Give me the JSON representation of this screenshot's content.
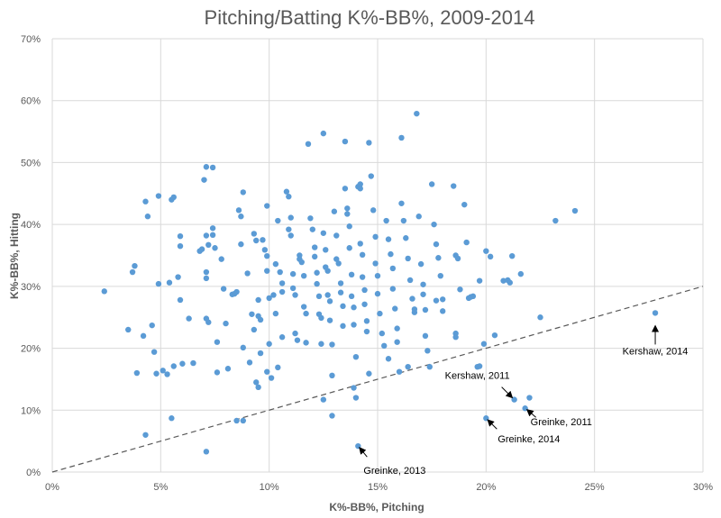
{
  "chart_data": {
    "type": "scatter",
    "title": "Pitching/Batting K%-BB%, 2009-2014",
    "xlabel": "K%-BB%, Pitching",
    "ylabel": "K%-BB%, Hitting",
    "xlim": [
      0,
      30
    ],
    "ylim": [
      0,
      70
    ],
    "xticks": [
      0,
      5,
      10,
      15,
      20,
      25,
      30
    ],
    "yticks": [
      0,
      10,
      20,
      30,
      40,
      50,
      60,
      70
    ],
    "xtick_labels": [
      "0%",
      "5%",
      "10%",
      "15%",
      "20%",
      "25%",
      "30%"
    ],
    "ytick_labels": [
      "0%",
      "10%",
      "20%",
      "30%",
      "40%",
      "50%",
      "60%",
      "70%"
    ],
    "grid": true,
    "point_color": "#5B9BD5",
    "reference_line": {
      "style": "dashed",
      "color": "#595959",
      "from": [
        0,
        0
      ],
      "to": [
        30,
        30
      ]
    },
    "annotations": [
      {
        "label": "Kershaw, 2014",
        "x": 27.8,
        "y": 25.7
      },
      {
        "label": "Kershaw, 2011",
        "x": 21.3,
        "y": 11.7
      },
      {
        "label": "Greinke, 2011",
        "x": 21.8,
        "y": 10.3
      },
      {
        "label": "Greinke, 2014",
        "x": 20.0,
        "y": 8.7
      },
      {
        "label": "Greinke, 2013",
        "x": 14.1,
        "y": 4.2
      }
    ],
    "points": [
      [
        2.4,
        29.2
      ],
      [
        3.5,
        23.0
      ],
      [
        3.7,
        32.3
      ],
      [
        3.8,
        33.3
      ],
      [
        3.9,
        16.0
      ],
      [
        4.2,
        22.0
      ],
      [
        4.3,
        43.7
      ],
      [
        4.4,
        41.3
      ],
      [
        4.3,
        6.0
      ],
      [
        4.6,
        23.7
      ],
      [
        4.7,
        19.4
      ],
      [
        4.8,
        15.9
      ],
      [
        4.9,
        44.6
      ],
      [
        4.9,
        30.4
      ],
      [
        5.1,
        16.4
      ],
      [
        5.3,
        15.8
      ],
      [
        5.4,
        30.6
      ],
      [
        5.5,
        44.0
      ],
      [
        5.6,
        44.4
      ],
      [
        5.6,
        17.1
      ],
      [
        5.5,
        8.7
      ],
      [
        5.8,
        31.5
      ],
      [
        5.9,
        38.1
      ],
      [
        5.9,
        36.5
      ],
      [
        5.9,
        27.8
      ],
      [
        6.0,
        17.5
      ],
      [
        6.3,
        24.8
      ],
      [
        6.5,
        17.6
      ],
      [
        6.8,
        35.7
      ],
      [
        6.9,
        36.0
      ],
      [
        7.0,
        47.2
      ],
      [
        7.1,
        49.3
      ],
      [
        7.1,
        38.2
      ],
      [
        7.1,
        32.3
      ],
      [
        7.1,
        31.3
      ],
      [
        7.2,
        36.7
      ],
      [
        7.1,
        24.8
      ],
      [
        7.2,
        24.2
      ],
      [
        7.1,
        3.3
      ],
      [
        7.4,
        49.2
      ],
      [
        7.4,
        39.4
      ],
      [
        7.4,
        38.3
      ],
      [
        7.5,
        36.2
      ],
      [
        7.6,
        21.0
      ],
      [
        7.6,
        16.1
      ],
      [
        7.8,
        34.4
      ],
      [
        7.9,
        29.6
      ],
      [
        8.0,
        24.0
      ],
      [
        8.1,
        16.7
      ],
      [
        8.3,
        28.7
      ],
      [
        8.4,
        28.8
      ],
      [
        8.5,
        29.1
      ],
      [
        8.6,
        42.3
      ],
      [
        8.7,
        41.3
      ],
      [
        8.7,
        36.8
      ],
      [
        8.8,
        45.2
      ],
      [
        8.8,
        20.1
      ],
      [
        8.8,
        8.3
      ],
      [
        9.0,
        32.1
      ],
      [
        9.1,
        17.7
      ],
      [
        9.2,
        25.5
      ],
      [
        9.3,
        23.0
      ],
      [
        9.3,
        38.5
      ],
      [
        9.4,
        37.4
      ],
      [
        9.5,
        13.7
      ],
      [
        9.4,
        14.5
      ],
      [
        9.5,
        27.8
      ],
      [
        9.5,
        25.2
      ],
      [
        9.6,
        24.6
      ],
      [
        9.6,
        19.2
      ],
      [
        9.7,
        37.5
      ],
      [
        9.8,
        35.9
      ],
      [
        9.9,
        34.9
      ],
      [
        9.9,
        43.0
      ],
      [
        9.9,
        32.5
      ],
      [
        10.0,
        28.1
      ],
      [
        10.0,
        20.7
      ],
      [
        10.1,
        15.2
      ],
      [
        10.2,
        28.6
      ],
      [
        10.3,
        25.6
      ],
      [
        10.3,
        33.6
      ],
      [
        10.4,
        40.6
      ],
      [
        10.5,
        32.3
      ],
      [
        10.6,
        30.5
      ],
      [
        10.6,
        21.8
      ],
      [
        10.6,
        29.1
      ],
      [
        10.8,
        45.3
      ],
      [
        10.9,
        44.5
      ],
      [
        10.9,
        39.2
      ],
      [
        11.0,
        41.1
      ],
      [
        11.0,
        38.2
      ],
      [
        11.1,
        32.0
      ],
      [
        11.1,
        29.7
      ],
      [
        11.2,
        28.6
      ],
      [
        11.2,
        22.4
      ],
      [
        11.3,
        21.3
      ],
      [
        11.4,
        35.0
      ],
      [
        11.4,
        34.4
      ],
      [
        11.5,
        33.9
      ],
      [
        11.6,
        31.7
      ],
      [
        11.6,
        26.7
      ],
      [
        11.7,
        25.6
      ],
      [
        11.7,
        20.9
      ],
      [
        11.8,
        53.0
      ],
      [
        11.9,
        41.0
      ],
      [
        12.0,
        39.2
      ],
      [
        12.1,
        36.3
      ],
      [
        12.1,
        34.8
      ],
      [
        12.2,
        32.2
      ],
      [
        12.2,
        30.4
      ],
      [
        12.3,
        28.4
      ],
      [
        12.3,
        25.5
      ],
      [
        12.4,
        24.9
      ],
      [
        12.4,
        20.7
      ],
      [
        12.5,
        54.7
      ],
      [
        12.5,
        38.6
      ],
      [
        12.6,
        35.9
      ],
      [
        12.6,
        33.1
      ],
      [
        12.7,
        32.5
      ],
      [
        12.7,
        28.6
      ],
      [
        12.8,
        27.6
      ],
      [
        12.8,
        24.5
      ],
      [
        12.9,
        20.6
      ],
      [
        12.9,
        15.6
      ],
      [
        13.0,
        42.1
      ],
      [
        13.1,
        38.2
      ],
      [
        13.1,
        34.4
      ],
      [
        13.2,
        33.7
      ],
      [
        13.3,
        30.5
      ],
      [
        13.3,
        29.0
      ],
      [
        13.4,
        26.8
      ],
      [
        13.4,
        23.6
      ],
      [
        13.5,
        53.4
      ],
      [
        13.5,
        45.8
      ],
      [
        13.6,
        42.6
      ],
      [
        13.6,
        41.7
      ],
      [
        13.7,
        39.7
      ],
      [
        13.7,
        36.2
      ],
      [
        13.8,
        31.9
      ],
      [
        13.8,
        28.4
      ],
      [
        13.9,
        26.6
      ],
      [
        13.9,
        23.8
      ],
      [
        14.0,
        18.6
      ],
      [
        14.1,
        46.1
      ],
      [
        14.2,
        46.5
      ],
      [
        14.2,
        45.8
      ],
      [
        14.2,
        36.9
      ],
      [
        14.3,
        35.1
      ],
      [
        14.3,
        31.5
      ],
      [
        14.4,
        29.4
      ],
      [
        14.4,
        27.1
      ],
      [
        14.5,
        24.4
      ],
      [
        14.5,
        22.7
      ],
      [
        14.6,
        53.2
      ],
      [
        14.7,
        47.8
      ],
      [
        14.8,
        42.3
      ],
      [
        14.9,
        38.0
      ],
      [
        14.9,
        33.7
      ],
      [
        15.0,
        31.7
      ],
      [
        15.0,
        28.8
      ],
      [
        15.1,
        25.6
      ],
      [
        15.2,
        22.4
      ],
      [
        15.3,
        20.4
      ],
      [
        15.4,
        40.6
      ],
      [
        15.5,
        37.6
      ],
      [
        15.6,
        35.2
      ],
      [
        15.7,
        32.9
      ],
      [
        15.7,
        29.6
      ],
      [
        15.8,
        26.4
      ],
      [
        15.9,
        23.2
      ],
      [
        15.9,
        21.0
      ],
      [
        16.0,
        16.2
      ],
      [
        16.1,
        54.0
      ],
      [
        16.1,
        43.4
      ],
      [
        16.2,
        40.6
      ],
      [
        16.3,
        37.8
      ],
      [
        16.4,
        34.5
      ],
      [
        16.5,
        31.0
      ],
      [
        16.6,
        28.0
      ],
      [
        16.7,
        26.3
      ],
      [
        16.7,
        25.8
      ],
      [
        16.8,
        57.9
      ],
      [
        16.9,
        41.3
      ],
      [
        17.0,
        33.6
      ],
      [
        17.1,
        30.3
      ],
      [
        17.1,
        28.7
      ],
      [
        17.2,
        26.2
      ],
      [
        17.2,
        22.0
      ],
      [
        17.3,
        19.6
      ],
      [
        17.4,
        17.0
      ],
      [
        17.5,
        46.5
      ],
      [
        17.6,
        40.0
      ],
      [
        17.7,
        36.8
      ],
      [
        17.8,
        34.6
      ],
      [
        17.9,
        31.7
      ],
      [
        18.0,
        27.9
      ],
      [
        18.5,
        46.2
      ],
      [
        18.6,
        35.0
      ],
      [
        18.7,
        34.5
      ],
      [
        18.8,
        29.5
      ],
      [
        19.0,
        43.2
      ],
      [
        19.1,
        37.1
      ],
      [
        19.2,
        28.1
      ],
      [
        19.3,
        28.3
      ],
      [
        19.4,
        28.4
      ],
      [
        19.6,
        17.0
      ],
      [
        19.7,
        30.9
      ],
      [
        19.9,
        20.7
      ],
      [
        20.0,
        35.7
      ],
      [
        20.2,
        34.8
      ],
      [
        20.4,
        22.1
      ],
      [
        20.8,
        30.9
      ],
      [
        21.0,
        31.0
      ],
      [
        21.1,
        30.6
      ],
      [
        21.2,
        34.9
      ],
      [
        21.6,
        32.0
      ],
      [
        22.0,
        12.0
      ],
      [
        22.5,
        25.0
      ],
      [
        23.2,
        40.6
      ],
      [
        24.1,
        42.2
      ],
      [
        9.9,
        16.2
      ],
      [
        10.4,
        16.9
      ],
      [
        8.5,
        8.3
      ],
      [
        12.9,
        9.1
      ],
      [
        12.5,
        11.7
      ],
      [
        13.9,
        13.6
      ],
      [
        14.6,
        15.9
      ],
      [
        14.0,
        12.0
      ],
      [
        15.5,
        18.3
      ],
      [
        16.4,
        17.0
      ],
      [
        18.0,
        26.0
      ],
      [
        17.7,
        27.7
      ],
      [
        18.6,
        22.4
      ],
      [
        18.6,
        21.8
      ],
      [
        19.7,
        17.1
      ],
      [
        21.3,
        11.7
      ],
      [
        21.8,
        10.3
      ],
      [
        20.0,
        8.7
      ],
      [
        14.1,
        4.2
      ],
      [
        27.8,
        25.7
      ]
    ]
  }
}
